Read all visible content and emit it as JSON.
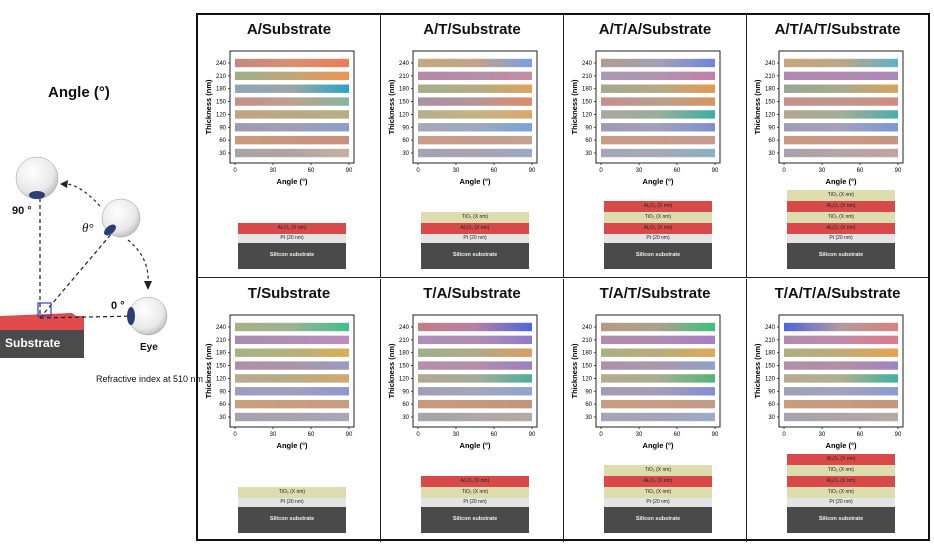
{
  "left_panel": {
    "angle_heading": "Angle (°)",
    "label_90": "90 °",
    "label_theta": "θ°",
    "label_0": "0 °",
    "substrate_label": "Substrate",
    "eye_label": "Eye",
    "refractive_note": "Refractive index at 510 nm"
  },
  "axis_text": {
    "ylabel": "Thickness (nm)",
    "xlabel": "Angle (°)"
  },
  "layer_text": {
    "al2o3": "Al₂O₃ (X nm)",
    "tio2": "TiO₂ (X nm)",
    "pt": "Pt (20 nm)",
    "si": "Silicon substrate"
  },
  "colors": {
    "al2o3": "#d84a4a",
    "tio2": "#dcdcae",
    "pt": "#e4e4e4",
    "si": "#4a4a4a"
  },
  "chart_data": [
    {
      "title": "A/Substrate",
      "type": "heatmap",
      "xticks": [
        "0",
        "30",
        "60",
        "90"
      ],
      "xlim": [
        0,
        90
      ],
      "yticks": [
        "30",
        "60",
        "90",
        "120",
        "150",
        "180",
        "210",
        "240"
      ],
      "layers": [
        "al2o3"
      ],
      "rows": [
        [
          "#a9a3a6",
          "#b0a3a1",
          "#c8b0a0"
        ],
        [
          "#c99a7a",
          "#c8977c",
          "#c9907e"
        ],
        [
          "#9f9ab0",
          "#9d9fb7",
          "#8a9fc8"
        ],
        [
          "#c3a385",
          "#b8a983",
          "#b3af82"
        ],
        [
          "#c78d8a",
          "#bea08f",
          "#7fb7a2"
        ],
        [
          "#8fa6b8",
          "#9aa7a6",
          "#2aa4c5"
        ],
        [
          "#9eaf86",
          "#c0a77a",
          "#ef9352"
        ],
        [
          "#c2887f",
          "#d59272",
          "#ef7a59"
        ]
      ]
    },
    {
      "title": "A/T/Substrate",
      "type": "heatmap",
      "xticks": [
        "0",
        "30",
        "60",
        "90"
      ],
      "xlim": [
        0,
        90
      ],
      "yticks": [
        "30",
        "60",
        "90",
        "120",
        "150",
        "180",
        "210",
        "240"
      ],
      "layers": [
        "tio2",
        "al2o3"
      ],
      "rows": [
        [
          "#a3a1b2",
          "#a7a2b0",
          "#9da8c4"
        ],
        [
          "#c89e8a",
          "#c69d8c",
          "#c3a291"
        ],
        [
          "#a5a9b8",
          "#9da8bf",
          "#7ba1dc"
        ],
        [
          "#b7ad8c",
          "#c4b282",
          "#d9a86a"
        ],
        [
          "#a891a7",
          "#b49497",
          "#df8c69"
        ],
        [
          "#a4ad8d",
          "#b2ad84",
          "#dda25b"
        ],
        [
          "#b28ba5",
          "#b58ea7",
          "#c68ba6"
        ],
        [
          "#c2a87f",
          "#c3a487",
          "#7a9de1"
        ]
      ]
    },
    {
      "title": "A/T/A/Substrate",
      "type": "heatmap",
      "xticks": [
        "0",
        "30",
        "60",
        "90"
      ],
      "xlim": [
        0,
        90
      ],
      "yticks": [
        "30",
        "60",
        "90",
        "120",
        "150",
        "180",
        "210",
        "240"
      ],
      "layers": [
        "al2o3",
        "tio2",
        "al2o3"
      ],
      "rows": [
        [
          "#a2a8b4",
          "#a7a8b6",
          "#8ab1c2"
        ],
        [
          "#c99c86",
          "#c69c88",
          "#c49b92"
        ],
        [
          "#9f99b6",
          "#a29fbf",
          "#7d8fd1"
        ],
        [
          "#a8a8a0",
          "#99ad9c",
          "#3bb0a0"
        ],
        [
          "#c98c8d",
          "#b99e8e",
          "#d6955f"
        ],
        [
          "#a3a98f",
          "#b6a985",
          "#e39a52"
        ],
        [
          "#a999b5",
          "#b094ae",
          "#c57dab"
        ],
        [
          "#b09b92",
          "#a4a0b6",
          "#6d86dd"
        ]
      ]
    },
    {
      "title": "A/T/A/T/Substrate",
      "type": "heatmap",
      "xticks": [
        "0",
        "30",
        "60",
        "90"
      ],
      "xlim": [
        0,
        90
      ],
      "yticks": [
        "30",
        "60",
        "90",
        "120",
        "150",
        "180",
        "210",
        "240"
      ],
      "layers": [
        "tio2",
        "al2o3",
        "tio2",
        "al2o3"
      ],
      "rows": [
        [
          "#a8a1ab",
          "#b2a6a6",
          "#c3a1a0"
        ],
        [
          "#c89a84",
          "#c89984",
          "#c7957f"
        ],
        [
          "#9f9cb7",
          "#a3a1bd",
          "#7a97d8"
        ],
        [
          "#b2a791",
          "#a3ad98",
          "#49aea9"
        ],
        [
          "#c78f8b",
          "#c0968e",
          "#d38c7d"
        ],
        [
          "#92a998",
          "#a8aa8a",
          "#d8a35e"
        ],
        [
          "#b189b0",
          "#b18bb3",
          "#a98ab6"
        ],
        [
          "#c8a57a",
          "#bba886",
          "#60b1c9"
        ]
      ]
    },
    {
      "title": "T/Substrate",
      "type": "heatmap",
      "xticks": [
        "0",
        "30",
        "60",
        "90"
      ],
      "xlim": [
        0,
        90
      ],
      "yticks": [
        "30",
        "60",
        "90",
        "120",
        "150",
        "180",
        "210",
        "240"
      ],
      "layers": [
        "tio2"
      ],
      "rows": [
        [
          "#a6a1b0",
          "#a9a2ae",
          "#a7a7b8"
        ],
        [
          "#c8a07e",
          "#c99e7f",
          "#c79c80"
        ],
        [
          "#9e9dbb",
          "#a09fbe",
          "#8c98d0"
        ],
        [
          "#b3ab8d",
          "#b8ab86",
          "#d1a86c"
        ],
        [
          "#b090a6",
          "#a995a8",
          "#9b9ac1"
        ],
        [
          "#a4b287",
          "#b3b17c",
          "#dcae52"
        ],
        [
          "#a88db3",
          "#b08eb5",
          "#bd8bbf"
        ],
        [
          "#a7b087",
          "#9bb393",
          "#3fc08f"
        ]
      ]
    },
    {
      "title": "T/A/Substrate",
      "type": "heatmap",
      "xticks": [
        "0",
        "30",
        "60",
        "90"
      ],
      "xlim": [
        0,
        90
      ],
      "yticks": [
        "30",
        "60",
        "90",
        "120",
        "150",
        "180",
        "210",
        "240"
      ],
      "layers": [
        "al2o3",
        "tio2"
      ],
      "rows": [
        [
          "#a8a3ad",
          "#ada7a9",
          "#b2aaa0"
        ],
        [
          "#c79a7f",
          "#c5997f",
          "#c2967e"
        ],
        [
          "#a09fb9",
          "#a3a5bf",
          "#8ea4d1"
        ],
        [
          "#b0a993",
          "#a6ac96",
          "#4fae9b"
        ],
        [
          "#b391aa",
          "#b48ea7",
          "#9c7fc4"
        ],
        [
          "#a0ad8c",
          "#b0aa85",
          "#d79f64"
        ],
        [
          "#ad8fb6",
          "#b08db3",
          "#8f7ad0"
        ],
        [
          "#c17f84",
          "#b480a4",
          "#4f67db"
        ]
      ]
    },
    {
      "title": "T/A/T/Substrate",
      "type": "heatmap",
      "xticks": [
        "0",
        "30",
        "60",
        "90"
      ],
      "xlim": [
        0,
        90
      ],
      "yticks": [
        "30",
        "60",
        "90",
        "120",
        "150",
        "180",
        "210",
        "240"
      ],
      "layers": [
        "tio2",
        "al2o3",
        "tio2"
      ],
      "rows": [
        [
          "#a6a4b2",
          "#a4a5b6",
          "#9cabc6"
        ],
        [
          "#c79e82",
          "#c69d84",
          "#c29a88"
        ],
        [
          "#a59ab4",
          "#a59dba",
          "#848ed0"
        ],
        [
          "#b3ab8a",
          "#a8ae90",
          "#52b47a"
        ],
        [
          "#ae8fa7",
          "#a999ac",
          "#8fa0c9"
        ],
        [
          "#a9b182",
          "#b7ac7d",
          "#deaa55"
        ],
        [
          "#b28cae",
          "#b18cb2",
          "#a47fc6"
        ],
        [
          "#b99983",
          "#a9a28f",
          "#3ec07b"
        ]
      ]
    },
    {
      "title": "T/A/T/A/Substrate",
      "type": "heatmap",
      "xticks": [
        "0",
        "30",
        "60",
        "90"
      ],
      "xlim": [
        0,
        90
      ],
      "yticks": [
        "30",
        "60",
        "90",
        "120",
        "150",
        "180",
        "210",
        "240"
      ],
      "layers": [
        "al2o3",
        "tio2",
        "al2o3",
        "tio2"
      ],
      "rows": [
        [
          "#a8a2ad",
          "#aca5aa",
          "#b6a9a3"
        ],
        [
          "#c79c7f",
          "#c59a80",
          "#c3977f"
        ],
        [
          "#a1a0bb",
          "#a1a2bf",
          "#8c9ad3"
        ],
        [
          "#b5ab8c",
          "#adb08c",
          "#40b0a0"
        ],
        [
          "#b48ea6",
          "#b18fa7",
          "#a183c1"
        ],
        [
          "#aab083",
          "#c1aa75",
          "#e9a34d"
        ],
        [
          "#b08cad",
          "#c08ba8",
          "#e07a8b"
        ],
        [
          "#4c66d8",
          "#b39aa1",
          "#d7837b"
        ]
      ]
    }
  ]
}
